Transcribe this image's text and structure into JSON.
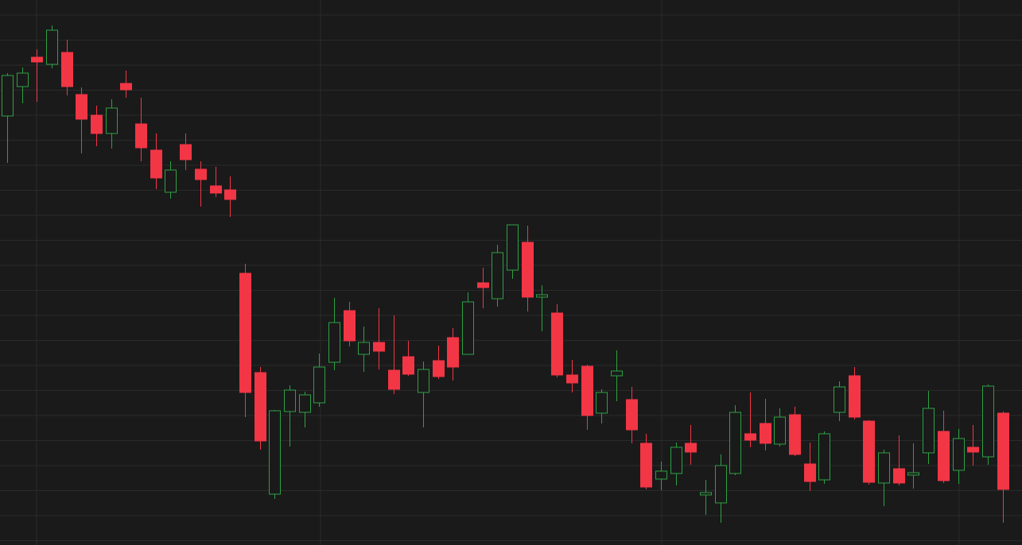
{
  "chart_data": {
    "type": "candlestick",
    "open": [
      540,
      577,
      614,
      605,
      620,
      567,
      541,
      518,
      581,
      530,
      497,
      444,
      504,
      473,
      452,
      447,
      342,
      217,
      64,
      168,
      167,
      179,
      230,
      295,
      240,
      255,
      220,
      237,
      192,
      232,
      261,
      240,
      330,
      310,
      346,
      381,
      312,
      292,
      214,
      225,
      166,
      213,
      183,
      128,
      83,
      90,
      128,
      63,
      53,
      90,
      140,
      153,
      127,
      164,
      102,
      82,
      167,
      213,
      156,
      78,
      96,
      88,
      116,
      143,
      94,
      123,
      111,
      166
    ],
    "high": [
      594,
      601,
      624,
      654,
      636,
      576,
      553,
      561,
      597,
      563,
      518,
      483,
      518,
      483,
      476,
      464,
      354,
      224,
      170,
      201,
      193,
      241,
      311,
      306,
      275,
      298,
      289,
      257,
      231,
      251,
      273,
      318,
      349,
      378,
      403,
      402,
      327,
      303,
      233,
      227,
      196,
      245,
      199,
      140,
      105,
      129,
      151,
      82,
      114,
      176,
      192,
      184,
      172,
      174,
      129,
      143,
      206,
      224,
      157,
      120,
      138,
      128,
      194,
      169,
      146,
      151,
      202,
      168
    ],
    "low": [
      481,
      556,
      558,
      600,
      566,
      493,
      502,
      499,
      563,
      483,
      448,
      436,
      472,
      426,
      438,
      413,
      161,
      120,
      58,
      124,
      148,
      174,
      220,
      250,
      218,
      221,
      190,
      213,
      148,
      209,
      207,
      240,
      298,
      300,
      335,
      294,
      269,
      211,
      192,
      145,
      153,
      181,
      128,
      70,
      69,
      75,
      101,
      38,
      28,
      88,
      123,
      119,
      124,
      112,
      68,
      77,
      156,
      158,
      76,
      49,
      75,
      71,
      102,
      78,
      77,
      100,
      101,
      28
    ],
    "close": [
      591,
      594,
      608,
      648,
      577,
      536,
      518,
      550,
      573,
      500,
      462,
      472,
      485,
      460,
      443,
      435,
      192,
      131,
      169,
      195,
      189,
      224,
      280,
      257,
      255,
      244,
      196,
      215,
      221,
      212,
      224,
      306,
      324,
      368,
      403,
      312,
      315,
      214,
      204,
      163,
      192,
      219,
      145,
      73,
      93,
      123,
      117,
      66,
      100,
      167,
      132,
      128,
      161,
      114,
      80,
      140,
      199,
      161,
      79,
      116,
      78,
      91,
      172,
      81,
      134,
      117,
      200,
      70
    ],
    "ylim": [
      0,
      686
    ],
    "up_color": "#2ea043",
    "down_color": "#f23645",
    "grid": true
  }
}
